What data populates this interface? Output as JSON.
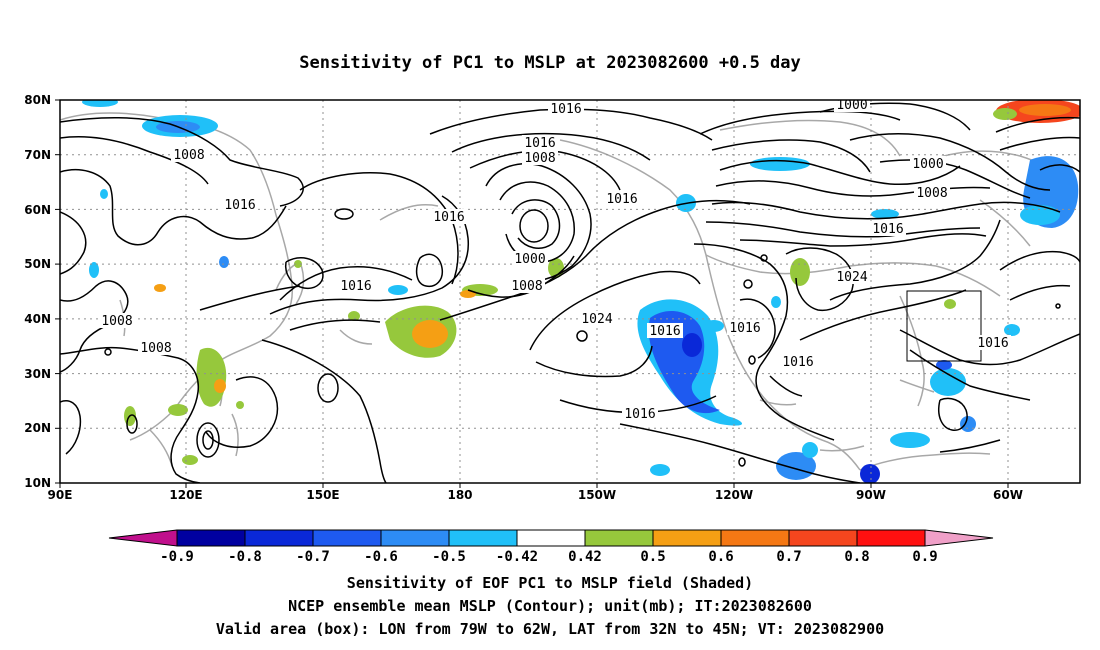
{
  "title": "Sensitivity of PC1 to MSLP at 2023082600 +0.5 day",
  "lat_ticks": [
    "80N",
    "70N",
    "60N",
    "50N",
    "40N",
    "30N",
    "20N",
    "10N"
  ],
  "lon_ticks": [
    "90E",
    "120E",
    "150E",
    "180",
    "150W",
    "120W",
    "90W",
    "60W"
  ],
  "contour_labels": [
    {
      "text": "1016"
    },
    {
      "text": "1000"
    },
    {
      "text": "1008"
    },
    {
      "text": "1016"
    },
    {
      "text": "1008"
    },
    {
      "text": "1016"
    },
    {
      "text": "1000"
    },
    {
      "text": "1008"
    },
    {
      "text": "1016"
    },
    {
      "text": "1016"
    },
    {
      "text": "1016"
    },
    {
      "text": "1000"
    },
    {
      "text": "1008"
    },
    {
      "text": "1024"
    },
    {
      "text": "1016"
    },
    {
      "text": "1008"
    },
    {
      "text": "1008"
    },
    {
      "text": "1024"
    },
    {
      "text": "1016"
    },
    {
      "text": "1016"
    },
    {
      "text": "1016"
    },
    {
      "text": "1016"
    },
    {
      "text": "1016"
    }
  ],
  "colorbar": {
    "labels": [
      "-0.9",
      "-0.8",
      "-0.7",
      "-0.6",
      "-0.5",
      "-0.42",
      "0.42",
      "0.5",
      "0.6",
      "0.7",
      "0.8",
      "0.9"
    ],
    "colors": [
      "#0000a0",
      "#0a28d8",
      "#1e5af0",
      "#2d8cf5",
      "#20c0f8",
      "#ffffff",
      "#96c83c",
      "#f59f14",
      "#f57814",
      "#f5461e",
      "#ff1010"
    ],
    "low_color": "#c0108c",
    "high_color": "#f0a0c8"
  },
  "caption": [
    "Sensitivity of EOF PC1 to MSLP field (Shaded)",
    "NCEP ensemble mean MSLP (Contour); unit(mb); IT:2023082600",
    "Valid area (box): LON from 79W to 62W, LAT from 32N to 45N; VT: 2023082900"
  ]
}
